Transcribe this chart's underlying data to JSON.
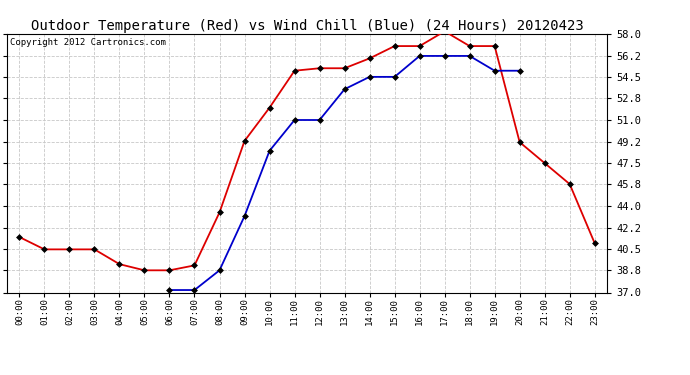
{
  "title": "Outdoor Temperature (Red) vs Wind Chill (Blue) (24 Hours) 20120423",
  "copyright": "Copyright 2012 Cartronics.com",
  "hours": [
    "00:00",
    "01:00",
    "02:00",
    "03:00",
    "04:00",
    "05:00",
    "06:00",
    "07:00",
    "08:00",
    "09:00",
    "10:00",
    "11:00",
    "12:00",
    "13:00",
    "14:00",
    "15:00",
    "16:00",
    "17:00",
    "18:00",
    "19:00",
    "20:00",
    "21:00",
    "22:00",
    "23:00"
  ],
  "temp_red": [
    41.5,
    40.5,
    40.5,
    40.5,
    39.3,
    38.8,
    38.8,
    39.2,
    43.5,
    49.3,
    52.0,
    55.0,
    55.2,
    55.2,
    56.0,
    57.0,
    57.0,
    58.2,
    57.0,
    57.0,
    49.2,
    47.5,
    45.8,
    41.0
  ],
  "wind_chill_blue": [
    null,
    null,
    null,
    null,
    null,
    null,
    37.2,
    37.2,
    38.8,
    43.2,
    48.5,
    51.0,
    51.0,
    53.5,
    54.5,
    54.5,
    56.2,
    56.2,
    56.2,
    55.0,
    55.0,
    null,
    null,
    null
  ],
  "ylim_min": 37.0,
  "ylim_max": 58.0,
  "yticks": [
    37.0,
    38.8,
    40.5,
    42.2,
    44.0,
    45.8,
    47.5,
    49.2,
    51.0,
    52.8,
    54.5,
    56.2,
    58.0
  ],
  "bg_color": "#ffffff",
  "plot_bg_color": "#ffffff",
  "grid_color": "#c8c8c8",
  "red_color": "#dd0000",
  "blue_color": "#0000cc",
  "title_fontsize": 10,
  "copyright_fontsize": 6.5
}
